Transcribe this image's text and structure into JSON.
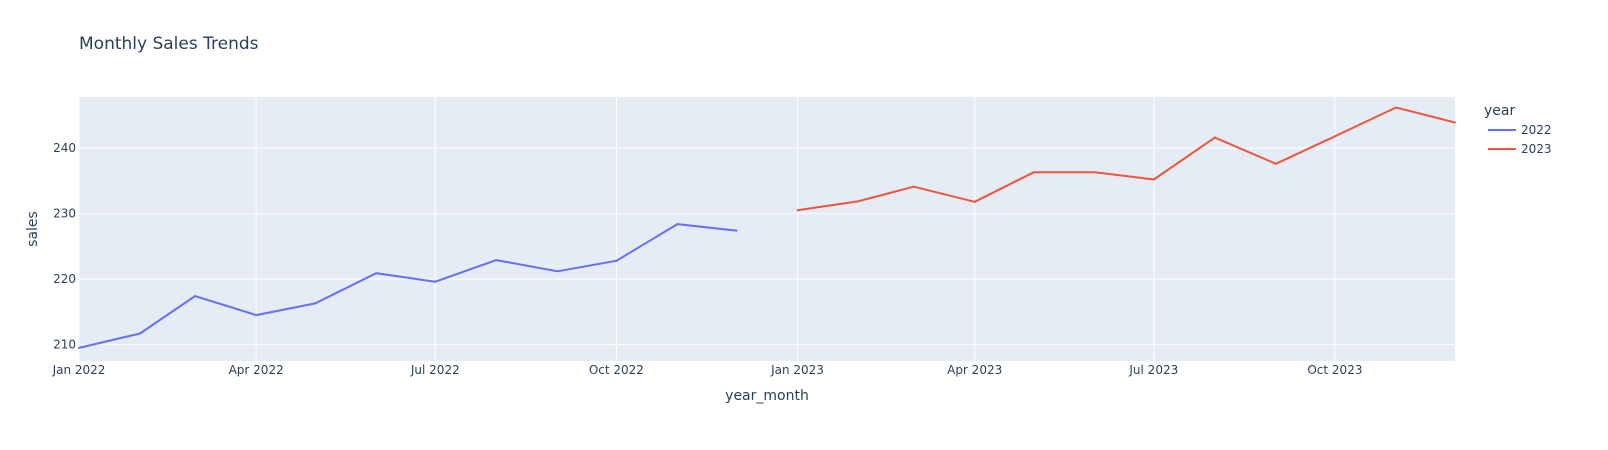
{
  "chart_data": {
    "type": "line",
    "title": "Monthly Sales Trends",
    "xlabel": "year_month",
    "ylabel": "sales",
    "xlim": [
      "2022-01-01",
      "2023-12-01"
    ],
    "ylim": [
      207.5,
      247.8
    ],
    "x_ticks": [
      {
        "date": "2022-01-01",
        "label": "Jan 2022"
      },
      {
        "date": "2022-04-01",
        "label": "Apr 2022"
      },
      {
        "date": "2022-07-01",
        "label": "Jul 2022"
      },
      {
        "date": "2022-10-01",
        "label": "Oct 2022"
      },
      {
        "date": "2023-01-01",
        "label": "Jan 2023"
      },
      {
        "date": "2023-04-01",
        "label": "Apr 2023"
      },
      {
        "date": "2023-07-01",
        "label": "Jul 2023"
      },
      {
        "date": "2023-10-01",
        "label": "Oct 2023"
      }
    ],
    "y_ticks": [
      210,
      220,
      230,
      240
    ],
    "grid": true,
    "legend": {
      "title": "year",
      "placement": "right"
    },
    "series": [
      {
        "name": "2022",
        "color": "#636efa",
        "x": [
          "2022-01-01",
          "2022-02-01",
          "2022-03-01",
          "2022-04-01",
          "2022-05-01",
          "2022-06-01",
          "2022-07-01",
          "2022-08-01",
          "2022-09-01",
          "2022-10-01",
          "2022-11-01",
          "2022-12-01"
        ],
        "y": [
          209.5,
          211.7,
          217.4,
          214.5,
          216.3,
          220.9,
          219.6,
          222.9,
          221.2,
          222.8,
          228.4,
          227.4
        ]
      },
      {
        "name": "2023",
        "color": "#ef553b",
        "x": [
          "2023-01-01",
          "2023-02-01",
          "2023-03-01",
          "2023-04-01",
          "2023-05-01",
          "2023-06-01",
          "2023-07-01",
          "2023-08-01",
          "2023-09-01",
          "2023-10-01",
          "2023-11-01",
          "2023-12-01"
        ],
        "y": [
          230.5,
          231.9,
          234.1,
          231.8,
          236.3,
          236.3,
          235.2,
          241.6,
          237.6,
          241.8,
          246.2,
          243.9
        ]
      }
    ]
  }
}
